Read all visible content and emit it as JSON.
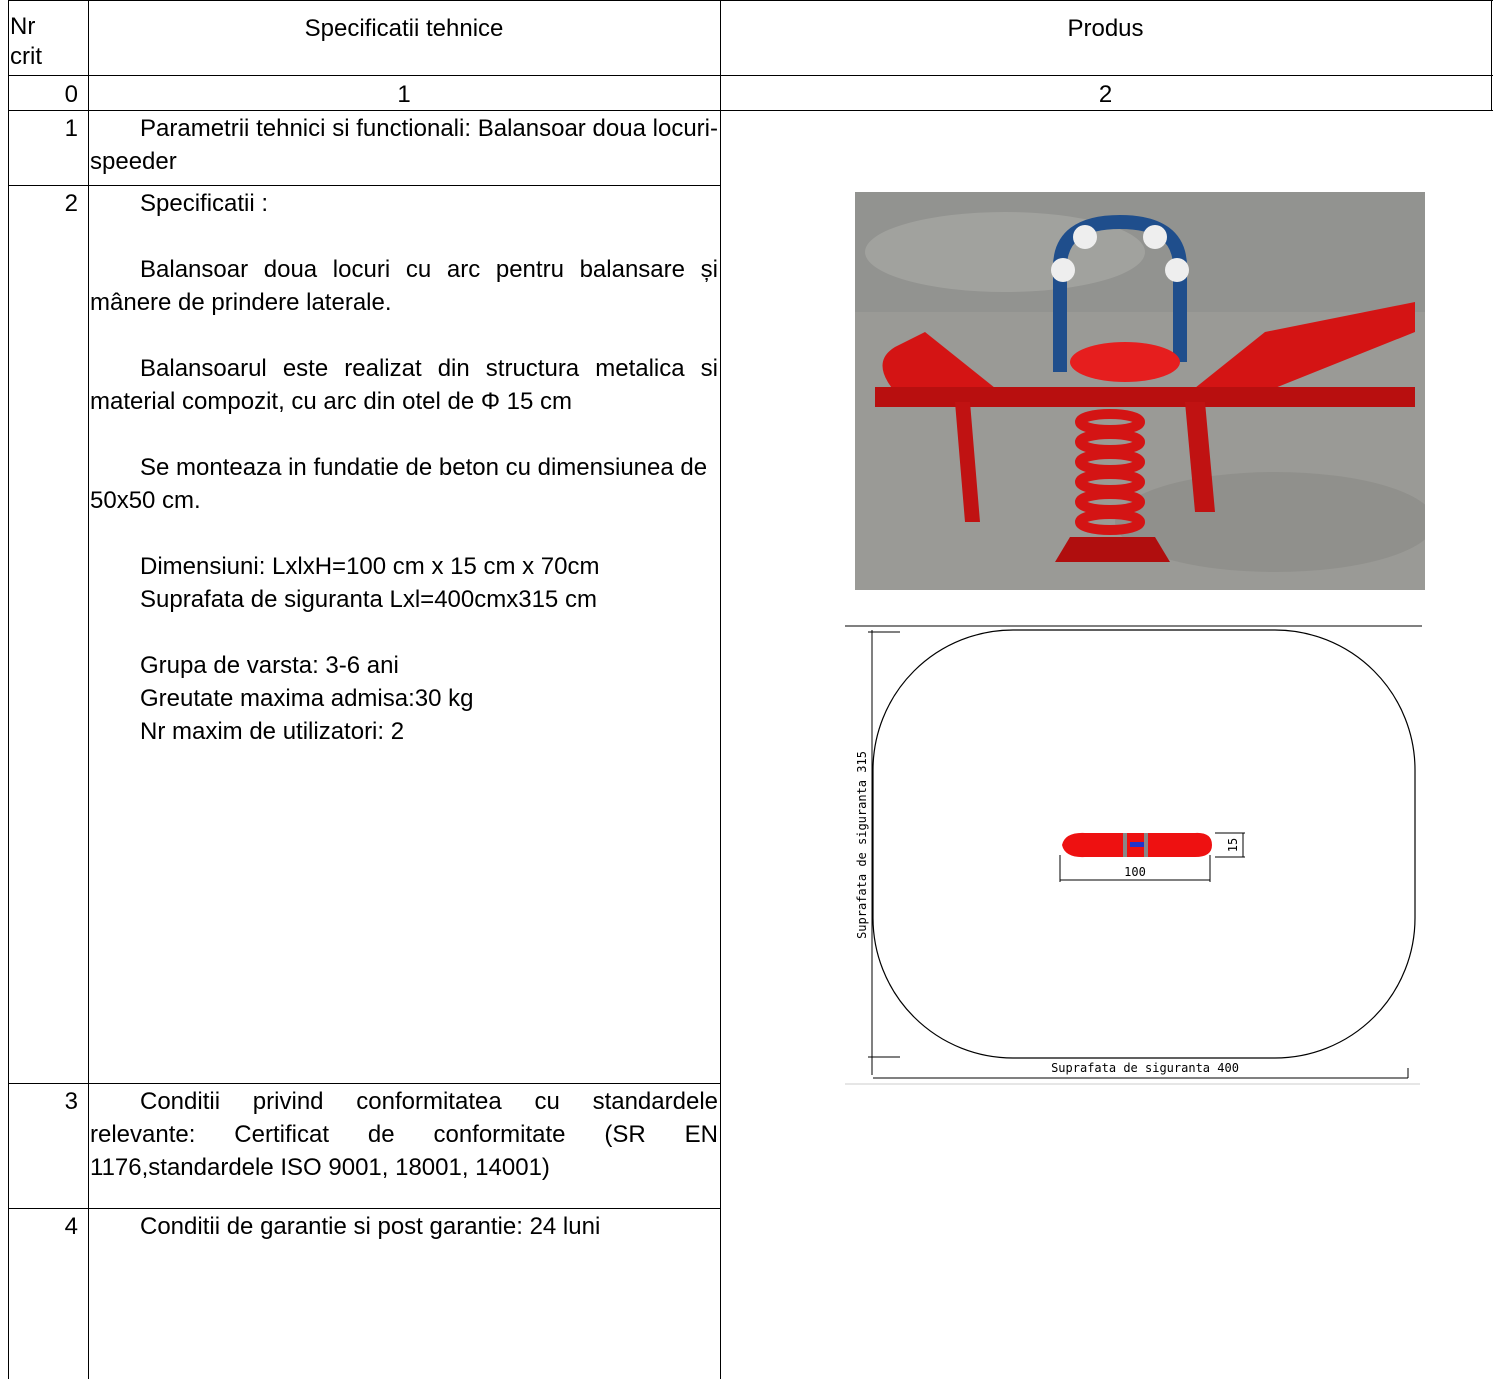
{
  "header": {
    "nr": "Nr crit",
    "spec": "Specificatii tehnice",
    "product": "Produs"
  },
  "index_row": [
    "0",
    "1",
    "2"
  ],
  "rows": [
    {
      "nr": "1",
      "paragraphs": [
        "Parametrii tehnici si functionali: Balansoar doua locuri-speeder"
      ]
    },
    {
      "nr": "2",
      "paragraphs": [
        "Specificatii :",
        "Balansoar doua locuri cu arc pentru balansare și mânere de prindere laterale.",
        "Balansoarul este realizat din structura metalica si material compozit, cu arc din otel de Φ 15 cm",
        "Se monteaza in fundatie de beton cu dimensiunea de 50x50 cm.",
        [
          "Dimensiuni: LxlxH=100 cm x 15 cm x 70cm",
          "Suprafata de siguranta Lxl=400cmx315 cm"
        ],
        [
          "Grupa de varsta: 3-6 ani",
          "Greutate maxima admisa:30 kg",
          "Nr maxim de utilizatori: 2"
        ]
      ]
    },
    {
      "nr": "3",
      "paragraphs": [
        "Conditii privind conformitatea cu standardele relevante: Certificat de conformitate (SR EN 1176,standardele ISO 9001, 18001, 14001)"
      ]
    },
    {
      "nr": "4",
      "paragraphs": [
        "Conditii de garantie si post garantie: 24 luni"
      ]
    }
  ],
  "diagram": {
    "height_label": "Suprafata de siguranta 315",
    "width_label": "Suprafata de siguranta 400",
    "length_label": "100",
    "depth_label": "15"
  }
}
